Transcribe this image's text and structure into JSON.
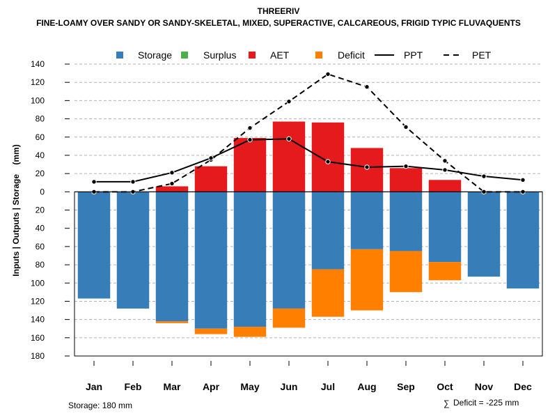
{
  "chart_data": {
    "type": "bar",
    "title": "THREERIV",
    "subtitle": "FINE-LOAMY OVER SANDY OR SANDY-SKELETAL, MIXED, SUPERACTIVE, CALCAREOUS, FRIGID TYPIC FLUVAQUENTS",
    "ylabel": "Inputs | Outputs | Storage    (mm)",
    "ylim": [
      -180,
      140
    ],
    "yticks": [
      140,
      120,
      100,
      80,
      60,
      40,
      20,
      0,
      -20,
      -40,
      -60,
      -80,
      -100,
      -120,
      -140,
      -160,
      -180
    ],
    "ytick_labels": [
      "140",
      "120",
      "100",
      "80",
      "60",
      "40",
      "20",
      "0",
      "20",
      "40",
      "60",
      "80",
      "100",
      "120",
      "140",
      "160",
      "180"
    ],
    "grid": true,
    "legend_position": "top",
    "categories": [
      "Jan",
      "Feb",
      "Mar",
      "Apr",
      "May",
      "Jun",
      "Jul",
      "Aug",
      "Sep",
      "Oct",
      "Nov",
      "Dec"
    ],
    "series": [
      {
        "name": "Storage",
        "kind": "bar-below",
        "color": "#377EB8",
        "values": [
          117,
          128,
          142,
          150,
          148,
          128,
          85,
          63,
          65,
          77,
          93,
          106
        ]
      },
      {
        "name": "Surplus",
        "kind": "bar-above",
        "color": "#4DAF4A",
        "values": [
          0,
          0,
          0,
          0,
          0,
          0,
          0,
          0,
          0,
          0,
          0,
          0
        ]
      },
      {
        "name": "AET",
        "kind": "bar-above",
        "color": "#E41A1C",
        "values": [
          0,
          0,
          6,
          28,
          59,
          77,
          76,
          48,
          26,
          13,
          0,
          0
        ]
      },
      {
        "name": "Deficit",
        "kind": "bar-below-stacked",
        "color": "#FF7F00",
        "values": [
          0,
          0,
          2,
          6,
          11,
          21,
          52,
          67,
          45,
          20,
          0,
          0
        ]
      },
      {
        "name": "PPT",
        "kind": "line-solid",
        "color": "#000000",
        "values": [
          11,
          11,
          21,
          37,
          57,
          58,
          33,
          27,
          28,
          24,
          17,
          13
        ]
      },
      {
        "name": "PET",
        "kind": "line-dashed",
        "color": "#000000",
        "values": [
          0,
          0,
          9,
          35,
          70,
          99,
          129,
          115,
          71,
          34,
          0,
          0
        ]
      }
    ],
    "legend": [
      "Storage",
      "Surplus",
      "AET",
      "Deficit",
      "PPT",
      "PET"
    ],
    "footer_left": "Storage: 180 mm",
    "footer_right_symbol": "∑",
    "footer_right": "Deficit = -225 mm"
  }
}
